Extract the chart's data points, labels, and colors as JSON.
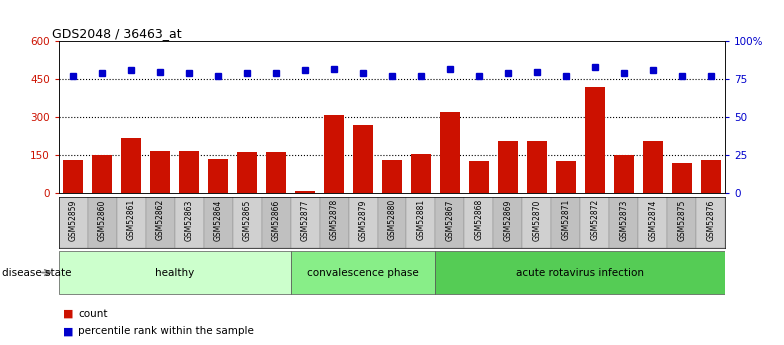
{
  "title": "GDS2048 / 36463_at",
  "samples": [
    "GSM52859",
    "GSM52860",
    "GSM52861",
    "GSM52862",
    "GSM52863",
    "GSM52864",
    "GSM52865",
    "GSM52866",
    "GSM52877",
    "GSM52878",
    "GSM52879",
    "GSM52880",
    "GSM52881",
    "GSM52867",
    "GSM52868",
    "GSM52869",
    "GSM52870",
    "GSM52871",
    "GSM52872",
    "GSM52873",
    "GSM52874",
    "GSM52875",
    "GSM52876"
  ],
  "counts": [
    130,
    152,
    220,
    168,
    168,
    135,
    163,
    163,
    10,
    308,
    268,
    130,
    155,
    322,
    128,
    208,
    208,
    128,
    418,
    150,
    208,
    118,
    130
  ],
  "percentiles": [
    77,
    79,
    81,
    80,
    79,
    77,
    79,
    79,
    81,
    82,
    79,
    77,
    77,
    82,
    77,
    79,
    80,
    77,
    83,
    79,
    81,
    77,
    77
  ],
  "groups": [
    {
      "label": "healthy",
      "start": 0,
      "end": 8,
      "color": "#ccffcc"
    },
    {
      "label": "convalescence phase",
      "start": 8,
      "end": 13,
      "color": "#88ee88"
    },
    {
      "label": "acute rotavirus infection",
      "start": 13,
      "end": 23,
      "color": "#55cc55"
    }
  ],
  "bar_color": "#cc1100",
  "dot_color": "#0000cc",
  "ylim_left": [
    0,
    600
  ],
  "ylim_right": [
    0,
    100
  ],
  "yticks_left": [
    0,
    150,
    300,
    450,
    600
  ],
  "ytick_labels_left": [
    "0",
    "150",
    "300",
    "450",
    "600"
  ],
  "yticks_right": [
    0,
    25,
    50,
    75,
    100
  ],
  "ytick_labels_right": [
    "0",
    "25",
    "50",
    "75",
    "100%"
  ],
  "grid_values": [
    150,
    300,
    450
  ],
  "label_bg_color": "#d4d4d4",
  "disease_state_label": "disease state"
}
